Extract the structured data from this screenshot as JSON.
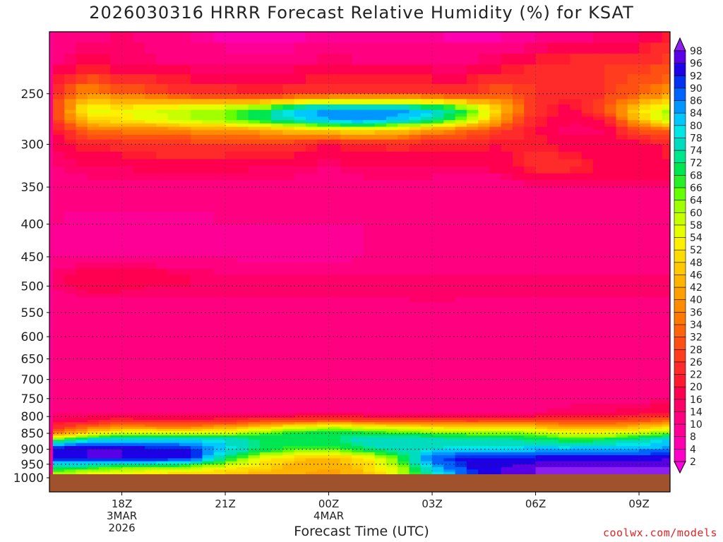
{
  "title": "2026030316 HRRR Forecast Relative Humidity (%) for KSAT",
  "credit": "coolwx.com/models",
  "chart_data": {
    "type": "heatmap",
    "title": "2026030316 HRRR Forecast Relative Humidity (%) for KSAT",
    "xlabel": "Forecast Time (UTC)",
    "ylabel": "",
    "x_ticks": [
      {
        "hour": 18,
        "lines": [
          "18Z",
          "3MAR",
          "2026"
        ]
      },
      {
        "hour": 21,
        "lines": [
          "21Z"
        ]
      },
      {
        "hour": 24,
        "lines": [
          "00Z",
          "4MAR"
        ]
      },
      {
        "hour": 27,
        "lines": [
          "03Z"
        ]
      },
      {
        "hour": 30,
        "lines": [
          "06Z"
        ]
      },
      {
        "hour": 33,
        "lines": [
          "09Z"
        ]
      }
    ],
    "xlim": [
      15.9,
      33.9
    ],
    "y_ticks": [
      250,
      300,
      350,
      400,
      450,
      500,
      550,
      600,
      650,
      700,
      750,
      800,
      850,
      900,
      950,
      1000
    ],
    "ylim_hPa": [
      200,
      985
    ],
    "ground_pressure_hPa": 985,
    "y_scale": "log",
    "grid": true,
    "colorbar": {
      "levels": [
        2,
        4,
        8,
        10,
        14,
        16,
        20,
        22,
        26,
        28,
        32,
        34,
        36,
        40,
        42,
        46,
        48,
        52,
        54,
        58,
        60,
        64,
        66,
        68,
        72,
        74,
        78,
        80,
        84,
        86,
        90,
        92,
        96,
        98
      ],
      "position": "right"
    },
    "x_hours": [
      16,
      17,
      18,
      19,
      20,
      21,
      22,
      23,
      24,
      25,
      26,
      27,
      28,
      29,
      30,
      31,
      32,
      33,
      34
    ],
    "pressure_levels": [
      200,
      225,
      250,
      265,
      275,
      285,
      300,
      325,
      350,
      400,
      450,
      480,
      500,
      520,
      550,
      600,
      650,
      700,
      750,
      790,
      810,
      830,
      850,
      870,
      900,
      930,
      960,
      985
    ],
    "rh": [
      [
        10,
        12,
        14,
        12,
        9,
        6,
        5,
        6,
        8,
        8,
        8,
        7,
        6,
        6,
        8,
        10,
        12,
        14,
        20
      ],
      [
        14,
        18,
        16,
        14,
        14,
        14,
        14,
        14,
        16,
        15,
        15,
        14,
        14,
        18,
        22,
        24,
        26,
        26,
        28
      ],
      [
        24,
        40,
        34,
        30,
        26,
        24,
        22,
        24,
        26,
        28,
        28,
        26,
        24,
        32,
        26,
        22,
        26,
        32,
        40
      ],
      [
        26,
        56,
        54,
        58,
        60,
        64,
        70,
        82,
        86,
        86,
        86,
        80,
        70,
        46,
        24,
        18,
        30,
        52,
        62
      ],
      [
        24,
        48,
        52,
        56,
        60,
        64,
        70,
        78,
        84,
        86,
        82,
        74,
        62,
        40,
        22,
        16,
        20,
        46,
        62
      ],
      [
        20,
        34,
        36,
        36,
        38,
        40,
        42,
        48,
        50,
        52,
        48,
        40,
        34,
        28,
        20,
        14,
        16,
        30,
        34
      ],
      [
        16,
        22,
        24,
        26,
        26,
        26,
        26,
        24,
        20,
        22,
        24,
        22,
        22,
        20,
        22,
        18,
        16,
        18,
        22
      ],
      [
        14,
        16,
        16,
        18,
        18,
        18,
        16,
        16,
        14,
        16,
        16,
        16,
        16,
        18,
        24,
        24,
        20,
        18,
        20
      ],
      [
        12,
        12,
        12,
        12,
        12,
        12,
        12,
        12,
        12,
        12,
        12,
        12,
        10,
        10,
        14,
        14,
        14,
        14,
        14
      ],
      [
        10,
        8,
        8,
        8,
        8,
        10,
        10,
        10,
        10,
        10,
        10,
        10,
        10,
        10,
        10,
        10,
        10,
        10,
        10
      ],
      [
        10,
        10,
        10,
        10,
        10,
        10,
        8,
        8,
        8,
        10,
        10,
        10,
        10,
        10,
        10,
        10,
        10,
        10,
        10
      ],
      [
        14,
        20,
        20,
        18,
        16,
        14,
        14,
        14,
        14,
        14,
        14,
        14,
        14,
        14,
        14,
        14,
        14,
        14,
        14
      ],
      [
        14,
        18,
        18,
        16,
        16,
        16,
        16,
        16,
        16,
        16,
        16,
        16,
        16,
        14,
        14,
        14,
        14,
        14,
        14
      ],
      [
        12,
        14,
        14,
        14,
        14,
        14,
        14,
        14,
        14,
        14,
        14,
        16,
        14,
        14,
        14,
        14,
        14,
        14,
        14
      ],
      [
        12,
        12,
        12,
        12,
        12,
        12,
        12,
        12,
        12,
        12,
        12,
        12,
        12,
        12,
        12,
        12,
        12,
        12,
        12
      ],
      [
        12,
        10,
        10,
        12,
        12,
        12,
        12,
        12,
        12,
        12,
        12,
        12,
        12,
        12,
        12,
        12,
        12,
        12,
        12
      ],
      [
        12,
        12,
        12,
        12,
        12,
        12,
        12,
        12,
        12,
        12,
        12,
        12,
        12,
        12,
        12,
        12,
        12,
        12,
        12
      ],
      [
        12,
        12,
        12,
        12,
        12,
        12,
        12,
        12,
        12,
        12,
        12,
        12,
        12,
        12,
        12,
        12,
        12,
        12,
        12
      ],
      [
        12,
        12,
        12,
        10,
        10,
        10,
        10,
        10,
        10,
        10,
        12,
        12,
        12,
        12,
        12,
        12,
        12,
        12,
        14
      ],
      [
        14,
        14,
        14,
        14,
        14,
        14,
        14,
        14,
        14,
        14,
        14,
        14,
        14,
        14,
        14,
        16,
        16,
        18,
        20
      ],
      [
        16,
        18,
        22,
        20,
        20,
        22,
        24,
        26,
        28,
        26,
        24,
        24,
        24,
        24,
        26,
        26,
        26,
        28,
        32
      ],
      [
        22,
        32,
        38,
        36,
        36,
        40,
        46,
        54,
        58,
        56,
        52,
        50,
        48,
        48,
        46,
        40,
        40,
        44,
        52
      ],
      [
        34,
        52,
        60,
        60,
        58,
        60,
        64,
        70,
        72,
        70,
        68,
        66,
        64,
        64,
        62,
        56,
        56,
        60,
        66
      ],
      [
        66,
        78,
        80,
        80,
        78,
        78,
        72,
        70,
        70,
        76,
        78,
        76,
        74,
        74,
        72,
        68,
        70,
        74,
        80
      ],
      [
        96,
        96,
        96,
        94,
        92,
        80,
        72,
        66,
        66,
        72,
        76,
        78,
        80,
        80,
        82,
        82,
        84,
        84,
        86
      ],
      [
        94,
        96,
        96,
        96,
        94,
        72,
        56,
        48,
        44,
        50,
        66,
        90,
        94,
        94,
        94,
        94,
        94,
        94,
        96
      ],
      [
        74,
        70,
        66,
        64,
        62,
        56,
        50,
        44,
        42,
        48,
        60,
        82,
        92,
        96,
        98,
        98,
        98,
        98,
        98
      ],
      [
        60,
        56,
        52,
        50,
        48,
        46,
        44,
        42,
        40,
        44,
        56,
        76,
        90,
        96,
        98,
        98,
        98,
        98,
        98
      ]
    ]
  }
}
